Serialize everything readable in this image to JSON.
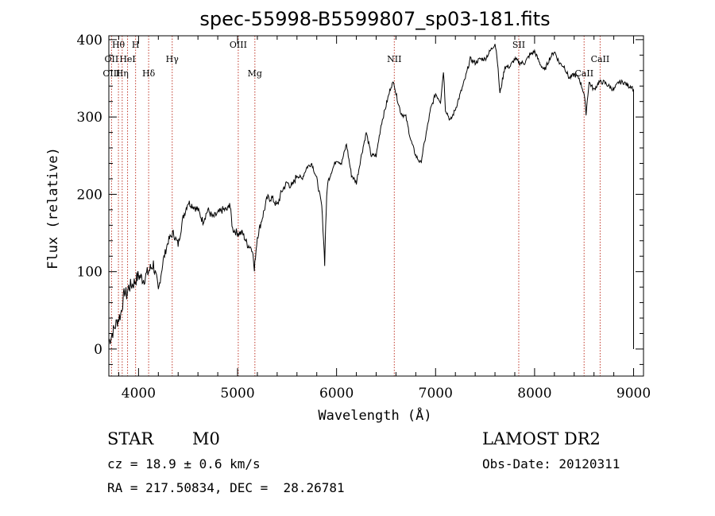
{
  "chart_data": {
    "type": "line",
    "title": "spec-55998-B5599807_sp03-181.fits",
    "xlabel": "Wavelength (Å)",
    "ylabel": "Flux (relative)",
    "xlim": [
      3700,
      9100
    ],
    "ylim": [
      -35,
      405
    ],
    "xticks": [
      4000,
      5000,
      6000,
      7000,
      8000,
      9000
    ],
    "yticks": [
      0,
      100,
      200,
      300,
      400
    ],
    "grid": false,
    "series": [
      {
        "x": [
          3700,
          3720,
          3740,
          3760,
          3780,
          3800,
          3820,
          3840,
          3860,
          3880,
          3900,
          3950,
          4000,
          4050,
          4100,
          4150,
          4200,
          4250,
          4300,
          4350,
          4400,
          4450,
          4500,
          4550,
          4600,
          4650,
          4700,
          4750,
          4800,
          4850,
          4900,
          4920,
          4950,
          5000,
          5050,
          5100,
          5150,
          5170,
          5180,
          5200,
          5250,
          5300,
          5350,
          5400,
          5450,
          5500,
          5550,
          5600,
          5650,
          5700,
          5750,
          5800,
          5850,
          5870,
          5880,
          5890,
          5900,
          5910,
          5950,
          6000,
          6050,
          6100,
          6150,
          6200,
          6250,
          6300,
          6350,
          6400,
          6450,
          6500,
          6550,
          6580,
          6600,
          6650,
          6700,
          6750,
          6800,
          6850,
          6900,
          6950,
          7000,
          7050,
          7080,
          7100,
          7150,
          7200,
          7250,
          7300,
          7350,
          7400,
          7450,
          7500,
          7550,
          7600,
          7620,
          7650,
          7700,
          7750,
          7800,
          7850,
          7900,
          7950,
          8000,
          8050,
          8100,
          8150,
          8200,
          8250,
          8300,
          8350,
          8400,
          8450,
          8500,
          8520,
          8550,
          8600,
          8650,
          8700,
          8750,
          8800,
          8850,
          8900,
          8950,
          8980,
          9000
        ],
        "values": [
          10,
          15,
          22,
          28,
          35,
          40,
          45,
          60,
          75,
          70,
          80,
          85,
          95,
          90,
          100,
          110,
          75,
          115,
          140,
          150,
          135,
          170,
          190,
          185,
          180,
          165,
          180,
          170,
          175,
          180,
          180,
          190,
          155,
          150,
          150,
          135,
          130,
          100,
          120,
          145,
          170,
          195,
          195,
          185,
          205,
          215,
          210,
          225,
          220,
          235,
          240,
          220,
          185,
          140,
          110,
          160,
          195,
          215,
          230,
          245,
          240,
          265,
          225,
          215,
          250,
          280,
          250,
          250,
          290,
          315,
          340,
          345,
          330,
          305,
          300,
          270,
          250,
          240,
          275,
          310,
          330,
          320,
          360,
          310,
          295,
          310,
          330,
          350,
          375,
          370,
          375,
          375,
          385,
          395,
          380,
          330,
          365,
          365,
          375,
          370,
          370,
          380,
          385,
          370,
          360,
          375,
          385,
          370,
          365,
          350,
          355,
          350,
          330,
          305,
          345,
          335,
          345,
          345,
          340,
          335,
          345,
          345,
          340,
          340,
          335
        ]
      }
    ],
    "lines": [
      {
        "label": "Hθ",
        "x": 3797,
        "row": 0
      },
      {
        "label": "H",
        "x": 3970,
        "row": 0
      },
      {
        "label": "OII",
        "x": 3727,
        "row": 1
      },
      {
        "label": "HeI",
        "x": 3889,
        "row": 1
      },
      {
        "label": "Hγ",
        "x": 4340,
        "row": 1
      },
      {
        "label": "OIII",
        "x": 3727,
        "row": 2
      },
      {
        "label": "Hη",
        "x": 3835,
        "row": 2
      },
      {
        "label": "Hδ",
        "x": 4102,
        "row": 2
      },
      {
        "label": "OIII",
        "x": 5007,
        "row": 0
      },
      {
        "label": "Mg",
        "x": 5175,
        "row": 2
      },
      {
        "label": "NII",
        "x": 6583,
        "row": 1
      },
      {
        "label": "SII",
        "x": 7840,
        "row": 0
      },
      {
        "label": "CaII",
        "x": 8662,
        "row": 1
      },
      {
        "label": "CaII",
        "x": 8500,
        "row": 2
      }
    ]
  },
  "info": {
    "object_class": "STAR",
    "subclass": "M0",
    "survey": "LAMOST DR2",
    "redshift": "cz = 18.9 ± 0.6 km/s",
    "obs_date": "Obs-Date: 20120311",
    "coords": "RA = 217.50834, DEC =  28.26781"
  }
}
